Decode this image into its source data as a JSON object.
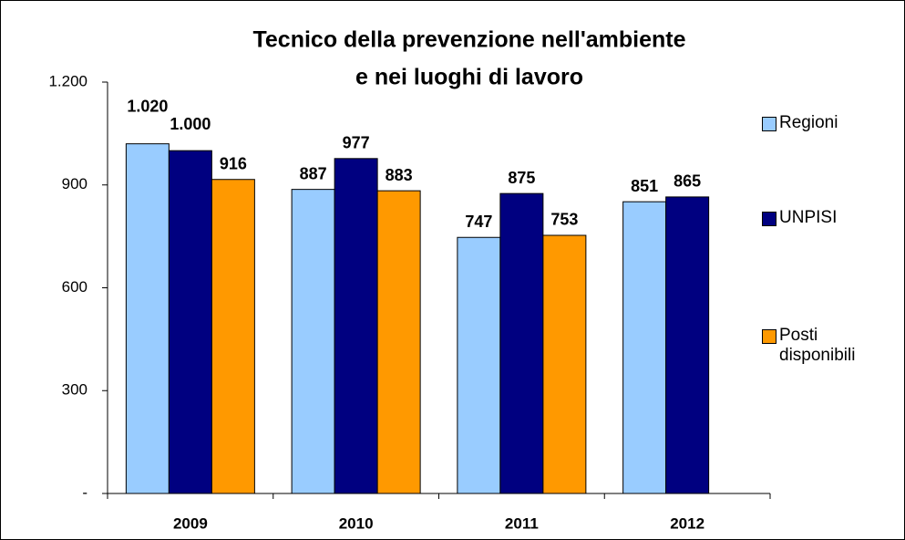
{
  "chart_data": {
    "type": "bar",
    "title": [
      "Tecnico della prevenzione nell'ambiente",
      "e nei luoghi di lavoro"
    ],
    "categories": [
      "2009",
      "2010",
      "2011",
      "2012"
    ],
    "series": [
      {
        "name": "Regioni",
        "color": "#99ccff",
        "values": [
          1020,
          887,
          747,
          851
        ],
        "value_labels": [
          "1.020",
          "887",
          "747",
          "851"
        ]
      },
      {
        "name": "UNPISI",
        "color": "#000080",
        "values": [
          1000,
          977,
          875,
          865
        ],
        "value_labels": [
          "1.000",
          "977",
          "875",
          "865"
        ]
      },
      {
        "name": "Posti disponibili",
        "color": "#ff9900",
        "values": [
          916,
          883,
          753,
          null
        ],
        "value_labels": [
          "916",
          "883",
          "753",
          null
        ]
      }
    ],
    "ylim": [
      0,
      1200
    ],
    "yticks": [
      {
        "value": 0,
        "label": "-"
      },
      300,
      600,
      900,
      {
        "value": 1200,
        "label": "1.200"
      }
    ],
    "legend": "right"
  }
}
